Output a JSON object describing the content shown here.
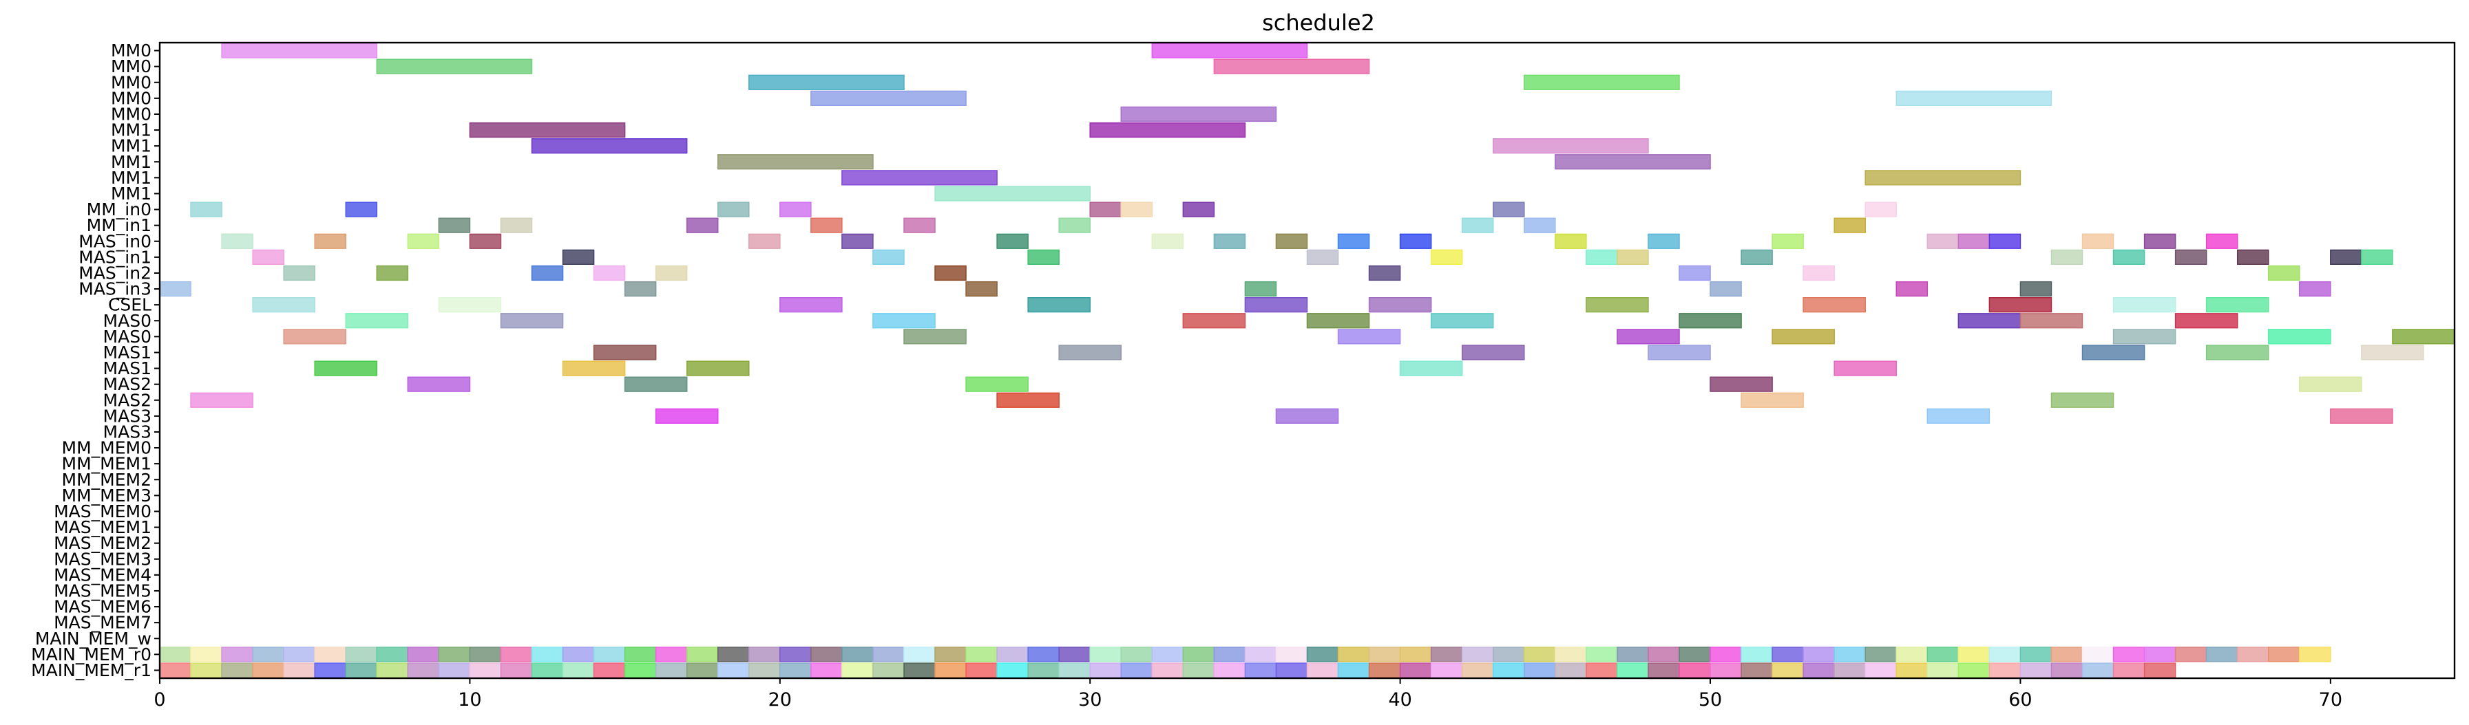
{
  "chart_data": {
    "type": "gantt",
    "title": "schedule2",
    "xlabel": "",
    "ylabel": "",
    "xlim": [
      0,
      74
    ],
    "xticks": [
      0,
      10,
      20,
      30,
      40,
      50,
      60,
      70
    ],
    "grid": false,
    "legend": "none",
    "rows": [
      "MM0",
      "MM0",
      "MM0",
      "MM0",
      "MM0",
      "MM1",
      "MM1",
      "MM1",
      "MM1",
      "MM1",
      "MM_in0",
      "MM_in1",
      "MAS_in0",
      "MAS_in1",
      "MAS_in2",
      "MAS_in3",
      "CSEL",
      "MAS0",
      "MAS0",
      "MAS1",
      "MAS1",
      "MAS2",
      "MAS2",
      "MAS3",
      "MAS3",
      "MM_MEM0",
      "MM_MEM1",
      "MM_MEM2",
      "MM_MEM3",
      "MAS_MEM0",
      "MAS_MEM1",
      "MAS_MEM2",
      "MAS_MEM3",
      "MAS_MEM4",
      "MAS_MEM5",
      "MAS_MEM6",
      "MAS_MEM7",
      "MAIN_MEM_w",
      "MAIN_MEM_r0",
      "MAIN_MEM_r1"
    ],
    "tasks": [
      {
        "row": 0,
        "start": 2,
        "end": 7,
        "color": "#e48ff0"
      },
      {
        "row": 0,
        "start": 32,
        "end": 37,
        "color": "#e05cf0"
      },
      {
        "row": 1,
        "start": 7,
        "end": 12,
        "color": "#6fcf7a"
      },
      {
        "row": 1,
        "start": 34,
        "end": 39,
        "color": "#ea6aa8"
      },
      {
        "row": 2,
        "start": 19,
        "end": 24,
        "color": "#4aaec4"
      },
      {
        "row": 2,
        "start": 44,
        "end": 49,
        "color": "#6ee06a"
      },
      {
        "row": 3,
        "start": 21,
        "end": 26,
        "color": "#8ea0e8"
      },
      {
        "row": 3,
        "start": 56,
        "end": 61,
        "color": "#a8e0ee"
      },
      {
        "row": 4,
        "start": 31,
        "end": 36,
        "color": "#a772cc"
      },
      {
        "row": 5,
        "start": 10,
        "end": 15,
        "color": "#8a3c7e"
      },
      {
        "row": 5,
        "start": 30,
        "end": 35,
        "color": "#9c2cb0"
      },
      {
        "row": 6,
        "start": 12,
        "end": 17,
        "color": "#6a38cc"
      },
      {
        "row": 6,
        "start": 43,
        "end": 48,
        "color": "#d88fd0"
      },
      {
        "row": 7,
        "start": 18,
        "end": 23,
        "color": "#939a72"
      },
      {
        "row": 7,
        "start": 45,
        "end": 50,
        "color": "#a06cbc"
      },
      {
        "row": 8,
        "start": 22,
        "end": 27,
        "color": "#8448d6"
      },
      {
        "row": 8,
        "start": 55,
        "end": 60,
        "color": "#bcae4c"
      },
      {
        "row": 9,
        "start": 25,
        "end": 30,
        "color": "#9ce8cc"
      },
      {
        "row": 10,
        "start": 1,
        "end": 2,
        "color": "#98d8d8"
      },
      {
        "row": 10,
        "start": 6,
        "end": 7,
        "color": "#4a56e8"
      },
      {
        "row": 10,
        "start": 18,
        "end": 19,
        "color": "#8ab8b8"
      },
      {
        "row": 10,
        "start": 20,
        "end": 21,
        "color": "#d070f0"
      },
      {
        "row": 10,
        "start": 30,
        "end": 31,
        "color": "#b06090"
      },
      {
        "row": 10,
        "start": 31,
        "end": 32,
        "color": "#f4d8b0"
      },
      {
        "row": 10,
        "start": 33,
        "end": 34,
        "color": "#7a38a8"
      },
      {
        "row": 10,
        "start": 43,
        "end": 44,
        "color": "#7a7ab8"
      },
      {
        "row": 10,
        "start": 55,
        "end": 56,
        "color": "#fad4ea"
      },
      {
        "row": 11,
        "start": 9,
        "end": 10,
        "color": "#6a8a7a"
      },
      {
        "row": 11,
        "start": 11,
        "end": 12,
        "color": "#d0d0b8"
      },
      {
        "row": 11,
        "start": 17,
        "end": 18,
        "color": "#9a58b0"
      },
      {
        "row": 11,
        "start": 21,
        "end": 22,
        "color": "#e07060"
      },
      {
        "row": 11,
        "start": 24,
        "end": 25,
        "color": "#c870b0"
      },
      {
        "row": 11,
        "start": 29,
        "end": 30,
        "color": "#90dca0"
      },
      {
        "row": 11,
        "start": 42,
        "end": 43,
        "color": "#90dce0"
      },
      {
        "row": 11,
        "start": 44,
        "end": 45,
        "color": "#98b8f0"
      },
      {
        "row": 11,
        "start": 54,
        "end": 55,
        "color": "#c8ae38"
      },
      {
        "row": 12,
        "start": 2,
        "end": 3,
        "color": "#c0e8d0"
      },
      {
        "row": 12,
        "start": 5,
        "end": 6,
        "color": "#dca070"
      },
      {
        "row": 12,
        "start": 8,
        "end": 9,
        "color": "#c0f080"
      },
      {
        "row": 12,
        "start": 10,
        "end": 11,
        "color": "#a04860"
      },
      {
        "row": 12,
        "start": 19,
        "end": 20,
        "color": "#e0a0b0"
      },
      {
        "row": 12,
        "start": 22,
        "end": 23,
        "color": "#7048a8"
      },
      {
        "row": 12,
        "start": 27,
        "end": 28,
        "color": "#3c9070"
      },
      {
        "row": 12,
        "start": 32,
        "end": 33,
        "color": "#e0f0c8"
      },
      {
        "row": 12,
        "start": 34,
        "end": 35,
        "color": "#70b0b8"
      },
      {
        "row": 12,
        "start": 36,
        "end": 37,
        "color": "#8a8448"
      },
      {
        "row": 12,
        "start": 38,
        "end": 39,
        "color": "#3c80f0"
      },
      {
        "row": 12,
        "start": 40,
        "end": 41,
        "color": "#3048f0"
      },
      {
        "row": 12,
        "start": 45,
        "end": 46,
        "color": "#d0e040"
      },
      {
        "row": 12,
        "start": 48,
        "end": 49,
        "color": "#58b8d8"
      },
      {
        "row": 12,
        "start": 52,
        "end": 53,
        "color": "#b0f070"
      },
      {
        "row": 12,
        "start": 57,
        "end": 58,
        "color": "#e0b0d0"
      },
      {
        "row": 12,
        "start": 58,
        "end": 59,
        "color": "#c870c8"
      },
      {
        "row": 12,
        "start": 59,
        "end": 60,
        "color": "#5838e8"
      },
      {
        "row": 12,
        "start": 62,
        "end": 63,
        "color": "#f4c8a0"
      },
      {
        "row": 12,
        "start": 64,
        "end": 65,
        "color": "#8c4898"
      },
      {
        "row": 12,
        "start": 66,
        "end": 67,
        "color": "#f040d0"
      },
      {
        "row": 13,
        "start": 3,
        "end": 4,
        "color": "#f0a0e0"
      },
      {
        "row": 13,
        "start": 13,
        "end": 14,
        "color": "#404060"
      },
      {
        "row": 13,
        "start": 23,
        "end": 24,
        "color": "#80d0e8"
      },
      {
        "row": 13,
        "start": 28,
        "end": 29,
        "color": "#40c070"
      },
      {
        "row": 13,
        "start": 37,
        "end": 38,
        "color": "#c0c0d0"
      },
      {
        "row": 13,
        "start": 41,
        "end": 42,
        "color": "#f0f050"
      },
      {
        "row": 13,
        "start": 46,
        "end": 47,
        "color": "#80f0d0"
      },
      {
        "row": 13,
        "start": 47,
        "end": 48,
        "color": "#d8d080"
      },
      {
        "row": 13,
        "start": 51,
        "end": 52,
        "color": "#60a8a0"
      },
      {
        "row": 13,
        "start": 61,
        "end": 62,
        "color": "#c0d8b8"
      },
      {
        "row": 13,
        "start": 63,
        "end": 64,
        "color": "#50c8a8"
      },
      {
        "row": 13,
        "start": 65,
        "end": 66,
        "color": "#705068"
      },
      {
        "row": 13,
        "start": 67,
        "end": 68,
        "color": "#603850"
      },
      {
        "row": 13,
        "start": 70,
        "end": 71,
        "color": "#403858"
      },
      {
        "row": 13,
        "start": 71,
        "end": 72,
        "color": "#50d890"
      },
      {
        "row": 14,
        "start": 4,
        "end": 5,
        "color": "#a0c8b8"
      },
      {
        "row": 14,
        "start": 7,
        "end": 8,
        "color": "#80a848"
      },
      {
        "row": 14,
        "start": 12,
        "end": 13,
        "color": "#4878d8"
      },
      {
        "row": 14,
        "start": 14,
        "end": 15,
        "color": "#f0b0f0"
      },
      {
        "row": 14,
        "start": 16,
        "end": 17,
        "color": "#e0d8b0"
      },
      {
        "row": 14,
        "start": 25,
        "end": 26,
        "color": "#8c4828"
      },
      {
        "row": 14,
        "start": 39,
        "end": 40,
        "color": "#584880"
      },
      {
        "row": 14,
        "start": 49,
        "end": 50,
        "color": "#9898f0"
      },
      {
        "row": 14,
        "start": 53,
        "end": 54,
        "color": "#f8c8e8"
      },
      {
        "row": 14,
        "start": 68,
        "end": 69,
        "color": "#a0e060"
      },
      {
        "row": 15,
        "start": 0,
        "end": 1,
        "color": "#a0c0e8"
      },
      {
        "row": 15,
        "start": 15,
        "end": 16,
        "color": "#809898"
      },
      {
        "row": 15,
        "start": 26,
        "end": 27,
        "color": "#8a6038"
      },
      {
        "row": 15,
        "start": 35,
        "end": 36,
        "color": "#58a878"
      },
      {
        "row": 15,
        "start": 50,
        "end": 51,
        "color": "#90a8d0"
      },
      {
        "row": 15,
        "start": 56,
        "end": 57,
        "color": "#c848b8"
      },
      {
        "row": 15,
        "start": 60,
        "end": 61,
        "color": "#506060"
      },
      {
        "row": 15,
        "start": 69,
        "end": 70,
        "color": "#b860d8"
      },
      {
        "row": 16,
        "start": 3,
        "end": 5,
        "color": "#a8e0e0"
      },
      {
        "row": 16,
        "start": 9,
        "end": 11,
        "color": "#e0f8d8"
      },
      {
        "row": 16,
        "start": 20,
        "end": 22,
        "color": "#c060e8"
      },
      {
        "row": 16,
        "start": 28,
        "end": 30,
        "color": "#38a0a0"
      },
      {
        "row": 16,
        "start": 35,
        "end": 37,
        "color": "#7850c8"
      },
      {
        "row": 16,
        "start": 39,
        "end": 41,
        "color": "#a070c0"
      },
      {
        "row": 16,
        "start": 46,
        "end": 48,
        "color": "#90b048"
      },
      {
        "row": 16,
        "start": 53,
        "end": 55,
        "color": "#e07860"
      },
      {
        "row": 16,
        "start": 59,
        "end": 61,
        "color": "#b02840"
      },
      {
        "row": 16,
        "start": 63,
        "end": 65,
        "color": "#b8f0e8"
      },
      {
        "row": 16,
        "start": 66,
        "end": 68,
        "color": "#60e8a0"
      },
      {
        "row": 17,
        "start": 6,
        "end": 8,
        "color": "#80f0b8"
      },
      {
        "row": 17,
        "start": 11,
        "end": 13,
        "color": "#9898c0"
      },
      {
        "row": 17,
        "start": 23,
        "end": 25,
        "color": "#70d0f0"
      },
      {
        "row": 17,
        "start": 33,
        "end": 35,
        "color": "#d05050"
      },
      {
        "row": 17,
        "start": 37,
        "end": 39,
        "color": "#709048"
      },
      {
        "row": 17,
        "start": 41,
        "end": 43,
        "color": "#60c8c8"
      },
      {
        "row": 17,
        "start": 49,
        "end": 51,
        "color": "#4a8058"
      },
      {
        "row": 17,
        "start": 58,
        "end": 60,
        "color": "#6838b8"
      },
      {
        "row": 17,
        "start": 60,
        "end": 62,
        "color": "#c07070"
      },
      {
        "row": 17,
        "start": 65,
        "end": 67,
        "color": "#d03050"
      },
      {
        "row": 18,
        "start": 4,
        "end": 6,
        "color": "#e09888"
      },
      {
        "row": 18,
        "start": 24,
        "end": 26,
        "color": "#80a078"
      },
      {
        "row": 18,
        "start": 38,
        "end": 40,
        "color": "#a088f0"
      },
      {
        "row": 18,
        "start": 47,
        "end": 49,
        "color": "#b048d0"
      },
      {
        "row": 18,
        "start": 52,
        "end": 54,
        "color": "#b8a838"
      },
      {
        "row": 18,
        "start": 63,
        "end": 65,
        "color": "#98b8b8"
      },
      {
        "row": 18,
        "start": 68,
        "end": 70,
        "color": "#50f0a8"
      },
      {
        "row": 18,
        "start": 72,
        "end": 74,
        "color": "#80a838"
      },
      {
        "row": 19,
        "start": 14,
        "end": 16,
        "color": "#8c5050"
      },
      {
        "row": 19,
        "start": 29,
        "end": 31,
        "color": "#9098a8"
      },
      {
        "row": 19,
        "start": 42,
        "end": 44,
        "color": "#8860b0"
      },
      {
        "row": 19,
        "start": 48,
        "end": 50,
        "color": "#98a0e0"
      },
      {
        "row": 19,
        "start": 62,
        "end": 64,
        "color": "#5880a8"
      },
      {
        "row": 19,
        "start": 66,
        "end": 68,
        "color": "#80c880"
      },
      {
        "row": 19,
        "start": 71,
        "end": 73,
        "color": "#e0d8c8"
      },
      {
        "row": 20,
        "start": 5,
        "end": 7,
        "color": "#48c848"
      },
      {
        "row": 20,
        "start": 13,
        "end": 15,
        "color": "#e8c048"
      },
      {
        "row": 20,
        "start": 17,
        "end": 19,
        "color": "#88a838"
      },
      {
        "row": 20,
        "start": 40,
        "end": 42,
        "color": "#80e8d0"
      },
      {
        "row": 20,
        "start": 54,
        "end": 56,
        "color": "#e868c0"
      },
      {
        "row": 21,
        "start": 8,
        "end": 10,
        "color": "#b860e0"
      },
      {
        "row": 21,
        "start": 15,
        "end": 17,
        "color": "#609080"
      },
      {
        "row": 21,
        "start": 26,
        "end": 28,
        "color": "#70e060"
      },
      {
        "row": 21,
        "start": 50,
        "end": 52,
        "color": "#884070"
      },
      {
        "row": 21,
        "start": 69,
        "end": 71,
        "color": "#d8e8a0"
      },
      {
        "row": 22,
        "start": 1,
        "end": 3,
        "color": "#f090e0"
      },
      {
        "row": 22,
        "start": 27,
        "end": 29,
        "color": "#d84830"
      },
      {
        "row": 22,
        "start": 51,
        "end": 53,
        "color": "#f0c090"
      },
      {
        "row": 22,
        "start": 61,
        "end": 63,
        "color": "#90c070"
      },
      {
        "row": 23,
        "start": 16,
        "end": 18,
        "color": "#e040f0"
      },
      {
        "row": 23,
        "start": 36,
        "end": 38,
        "color": "#a070e0"
      },
      {
        "row": 23,
        "start": 57,
        "end": 59,
        "color": "#90c8f8"
      },
      {
        "row": 23,
        "start": 70,
        "end": 72,
        "color": "#e86898"
      }
    ],
    "mem_rows": [
      {
        "row": 38,
        "colors": [
          "#b8e0a0",
          "#f8f0b0",
          "#d090e0",
          "#98b8d8",
          "#b0b8f0",
          "#f8d8c0",
          "#a0d0b8",
          "#60c8a0",
          "#c070d0",
          "#80b070",
          "#709078",
          "#f070b0",
          "#80e8f0",
          "#a0a0f0",
          "#90d8e8",
          "#60d860",
          "#f060e0",
          "#a0e070",
          "#606060",
          "#b090c0",
          "#7858c8",
          "#886878",
          "#6898a8",
          "#98a8d8",
          "#c0f0f8",
          "#b0a060",
          "#a8e880",
          "#c0b0e0",
          "#6070e8",
          "#7050c0",
          "#b0f0c8",
          "#98d8a8",
          "#b0c0f8",
          "#80c880",
          "#8898e0",
          "#d8c0f0",
          "#f8e0f0",
          "#50908c",
          "#d8c050",
          "#e0c080",
          "#e0c060",
          "#a07890",
          "#c8b8e0",
          "#a0b0c0",
          "#d0d060",
          "#f0e8b0",
          "#a0f0a0",
          "#8098b0",
          "#c070a8",
          "#608070",
          "#f050e0",
          "#90f0e8",
          "#7060e0",
          "#b090f0",
          "#78d0f0",
          "#709880",
          "#e0f0a0",
          "#60d090",
          "#f0f070",
          "#b8f0f0",
          "#60c8b0",
          "#e8a080",
          "#f8f0f8",
          "#f060e8",
          "#e070f0",
          "#e08080",
          "#80a8c0",
          "#e8a0a0",
          "#e89070",
          "#f8e060"
        ]
      },
      {
        "row": 39,
        "colors": [
          "#f08080",
          "#d8e070",
          "#a8b088",
          "#e8a070",
          "#f0c0c0",
          "#6060f0",
          "#60b0a0",
          "#b8e078",
          "#c090c8",
          "#b8b0e8",
          "#f0c0e0",
          "#e080c0",
          "#60d8a0",
          "#a0e8c0",
          "#f06080",
          "#60e860",
          "#a0b8c0",
          "#80a070",
          "#a8c8f8",
          "#b0c0b0",
          "#88b0c8",
          "#f070e8",
          "#e0f8a0",
          "#a8c898",
          "#506858",
          "#f09858",
          "#f06060",
          "#48f0f0",
          "#70c0a0",
          "#a0d8d0",
          "#c8b0f0",
          "#8898f0",
          "#f0b0d0",
          "#a0d0a0",
          "#f0a8f0",
          "#8080f0",
          "#7060e8",
          "#f0b8d8",
          "#60d0f0",
          "#d07050",
          "#c050a0",
          "#f0a0f0",
          "#e8c0a0",
          "#60d8f0",
          "#80a8f0",
          "#c0b0c0",
          "#f07070",
          "#60f0b0",
          "#a06080",
          "#f050a0",
          "#f070d0",
          "#a07070",
          "#e8d060",
          "#b070d0",
          "#c0a0c0",
          "#f0c0f0",
          "#e8d050",
          "#d0f0a0",
          "#a0f060",
          "#f8a8a8",
          "#d0b0e0",
          "#c080c0",
          "#a0c0e8",
          "#f080a0",
          "#e06068"
        ]
      }
    ]
  }
}
